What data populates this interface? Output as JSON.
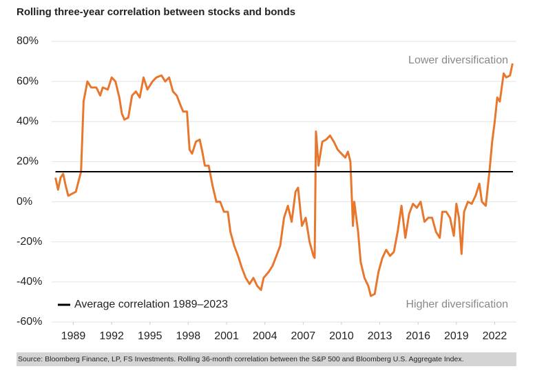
{
  "chart_data": {
    "type": "line",
    "title": "Rolling three-year correlation between stocks and bonds",
    "annotations": [
      "Lower diversification",
      "Higher diversification"
    ],
    "source": "Source: Bloomberg Finance, LP, FS Investments. Rolling 36-month correlation between the S&P 500 and Bloomberg U.S. Aggregate Index.",
    "xlim": [
      1987.3,
      2023.7
    ],
    "xticks": [
      1989,
      1992,
      1995,
      1998,
      2001,
      2004,
      2007,
      2010,
      2013,
      2016,
      2019,
      2022
    ],
    "ylim": [
      -60,
      80
    ],
    "yticks": [
      {
        "value": -60,
        "label": "-60%"
      },
      {
        "value": -40,
        "label": "-40%"
      },
      {
        "value": -20,
        "label": "-20%"
      },
      {
        "value": 0,
        "label": "0%"
      },
      {
        "value": 20,
        "label": "20%"
      },
      {
        "value": 40,
        "label": "40%"
      },
      {
        "value": 60,
        "label": "60%"
      },
      {
        "value": 80,
        "label": "80%"
      }
    ],
    "grid": true,
    "average": {
      "name": "Average correlation 1989–2023",
      "value": 15,
      "color": "#000000"
    },
    "series": [
      {
        "color": "#e8772e",
        "x": [
          1987.6,
          1987.8,
          1988.0,
          1988.2,
          1988.4,
          1988.6,
          1988.9,
          1989.2,
          1989.4,
          1989.6,
          1989.8,
          1990.1,
          1990.4,
          1990.8,
          1991.1,
          1991.3,
          1991.7,
          1992.0,
          1992.3,
          1992.6,
          1992.8,
          1993.0,
          1993.3,
          1993.6,
          1993.9,
          1994.2,
          1994.5,
          1994.8,
          1995.2,
          1995.5,
          1995.9,
          1996.2,
          1996.5,
          1996.8,
          1997.1,
          1997.4,
          1997.6,
          1997.9,
          1998.1,
          1998.3,
          1998.6,
          1998.9,
          1999.1,
          1999.3,
          1999.6,
          1999.9,
          2000.2,
          2000.5,
          2000.8,
          2001.1,
          2001.3,
          2001.6,
          2001.9,
          2002.2,
          2002.5,
          2002.8,
          2003.1,
          2003.4,
          2003.7,
          2003.9,
          2004.3,
          2004.6,
          2004.9,
          2005.2,
          2005.5,
          2005.8,
          2006.1,
          2006.4,
          2006.6,
          2006.9,
          2007.2,
          2007.5,
          2007.8,
          2007.9,
          2008.0,
          2008.2,
          2008.5,
          2008.8,
          2009.1,
          2009.4,
          2009.7,
          2010.0,
          2010.3,
          2010.5,
          2010.7,
          2010.9,
          2011.0,
          2011.3,
          2011.5,
          2011.8,
          2012.1,
          2012.3,
          2012.6,
          2012.9,
          2013.2,
          2013.5,
          2013.8,
          2014.1,
          2014.4,
          2014.7,
          2015.0,
          2015.3,
          2015.6,
          2015.9,
          2016.2,
          2016.5,
          2016.8,
          2017.1,
          2017.4,
          2017.7,
          2017.9,
          2018.2,
          2018.5,
          2018.8,
          2019.0,
          2019.2,
          2019.4,
          2019.6,
          2019.9,
          2020.2,
          2020.5,
          2020.8,
          2021.0,
          2021.3,
          2021.6,
          2021.8,
          2022.0,
          2022.2,
          2022.4,
          2022.7,
          2022.9,
          2023.2,
          2023.4
        ],
        "values": [
          12,
          6,
          12,
          14,
          8,
          3,
          4,
          5,
          10,
          15,
          50,
          60,
          57,
          57,
          53,
          57,
          56,
          62,
          60,
          52,
          44,
          41,
          42,
          53,
          55,
          52,
          62,
          56,
          60,
          62,
          63,
          60,
          62,
          55,
          53,
          48,
          45,
          45,
          26,
          24,
          30,
          31,
          25,
          18,
          18,
          8,
          0,
          0,
          -5,
          -5,
          -15,
          -22,
          -27,
          -33,
          -38,
          -41,
          -38,
          -42,
          -44,
          -38,
          -35,
          -32,
          -27,
          -22,
          -8,
          -2,
          -10,
          5,
          7,
          -12,
          -8,
          -20,
          -27,
          -28,
          35,
          18,
          30,
          31,
          33,
          30,
          26,
          24,
          22,
          25,
          20,
          -12,
          0,
          -15,
          -30,
          -38,
          -42,
          -47,
          -46,
          -35,
          -28,
          -24,
          -27,
          -25,
          -15,
          -2,
          -18,
          -6,
          -1,
          -3,
          0,
          -10,
          -8,
          -8,
          -15,
          -18,
          -5,
          -5,
          -8,
          -17,
          -1,
          -8,
          -26,
          -5,
          0,
          -1,
          3,
          9,
          0,
          -2,
          16,
          30,
          40,
          52,
          50,
          64,
          62,
          63,
          69
        ]
      }
    ]
  }
}
